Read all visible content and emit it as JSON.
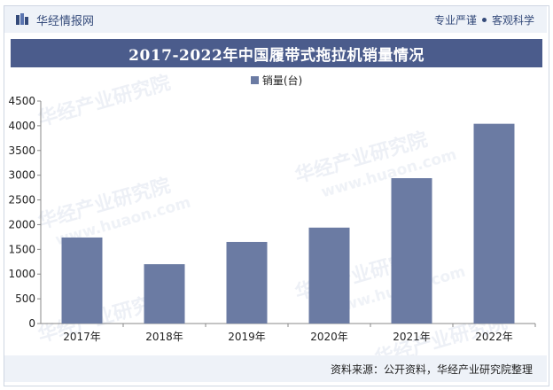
{
  "header": {
    "brand": "华经情报网",
    "slogan_left": "专业严谨",
    "slogan_right": "客观科学"
  },
  "watermark": {
    "cn": "华经产业研究院",
    "en": "www.huaon.com"
  },
  "colors": {
    "bar": "#6b7ba3",
    "title_bg": "#4b5c8c",
    "band_bg": "#eef2f8"
  },
  "footer": {
    "source": "资料来源：公开资料，华经产业研究院整理"
  },
  "chart_data": {
    "type": "bar",
    "title": "2017-2022年中国履带式拖拉机销量情况",
    "categories": [
      "2017年",
      "2018年",
      "2019年",
      "2020年",
      "2021年",
      "2022年"
    ],
    "series": [
      {
        "name": "销量(台)",
        "values": [
          1740,
          1200,
          1650,
          1940,
          2940,
          4040
        ]
      }
    ],
    "ylim": [
      0,
      4500
    ],
    "yticks": [
      0,
      500,
      1000,
      1500,
      2000,
      2500,
      3000,
      3500,
      4000,
      4500
    ],
    "legend_position": "top-center",
    "grid": false
  }
}
